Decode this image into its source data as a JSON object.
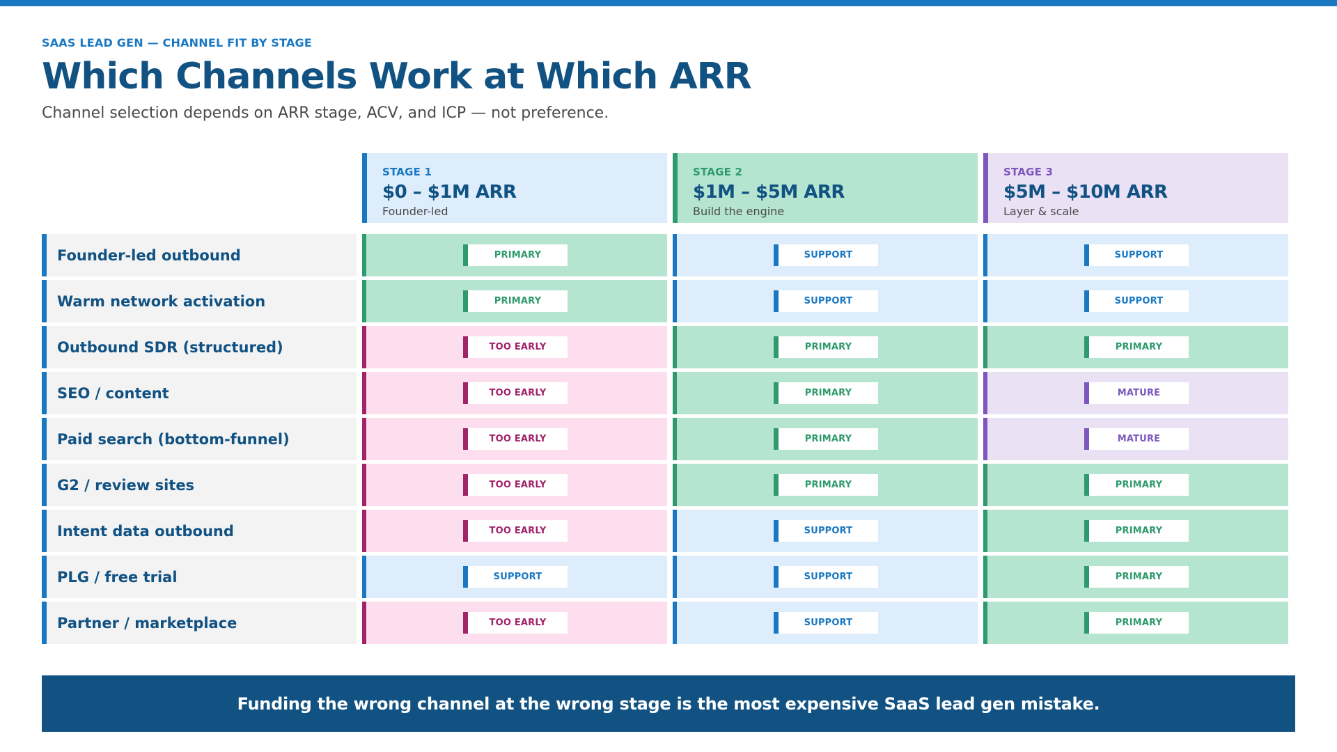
{
  "eyebrow": "SAAS LEAD GEN — CHANNEL FIT BY STAGE",
  "title": "Which Channels Work at Which ARR",
  "subtitle": "Channel selection depends on ARR stage, ACV, and ICP — not preference.",
  "stages": [
    {
      "label": "STAGE 1",
      "range": "$0 – $1M ARR",
      "desc": "Founder-led",
      "bg": "#ddedfb",
      "accent": "#1a78c2"
    },
    {
      "label": "STAGE 2",
      "range": "$1M – $5M ARR",
      "desc": "Build the engine",
      "bg": "#b5e4d0",
      "accent": "#2e9a6d"
    },
    {
      "label": "STAGE 3",
      "range": "$5M – $10M ARR",
      "desc": "Layer & scale",
      "bg": "#ebe1f5",
      "accent": "#7d57bd"
    }
  ],
  "fit_colors": {
    "PRIMARY": "#2e9a6d",
    "SUPPORT": "#1a78c2",
    "TOO EARLY": "#a1236a",
    "MATURE": "#7d57bd"
  },
  "rows": [
    {
      "channel": "Founder-led outbound",
      "fit": [
        "PRIMARY",
        "SUPPORT",
        "SUPPORT"
      ]
    },
    {
      "channel": "Warm network activation",
      "fit": [
        "PRIMARY",
        "SUPPORT",
        "SUPPORT"
      ]
    },
    {
      "channel": "Outbound SDR (structured)",
      "fit": [
        "TOO EARLY",
        "PRIMARY",
        "PRIMARY"
      ]
    },
    {
      "channel": "SEO / content",
      "fit": [
        "TOO EARLY",
        "PRIMARY",
        "MATURE"
      ]
    },
    {
      "channel": "Paid search (bottom-funnel)",
      "fit": [
        "TOO EARLY",
        "PRIMARY",
        "MATURE"
      ]
    },
    {
      "channel": "G2 / review sites",
      "fit": [
        "TOO EARLY",
        "PRIMARY",
        "PRIMARY"
      ]
    },
    {
      "channel": "Intent data outbound",
      "fit": [
        "TOO EARLY",
        "SUPPORT",
        "PRIMARY"
      ]
    },
    {
      "channel": "PLG / free trial",
      "fit": [
        "SUPPORT",
        "SUPPORT",
        "PRIMARY"
      ]
    },
    {
      "channel": "Partner / marketplace",
      "fit": [
        "TOO EARLY",
        "SUPPORT",
        "PRIMARY"
      ]
    }
  ],
  "footer": "Funding the wrong channel at the wrong stage is the most expensive SaaS lead gen mistake."
}
